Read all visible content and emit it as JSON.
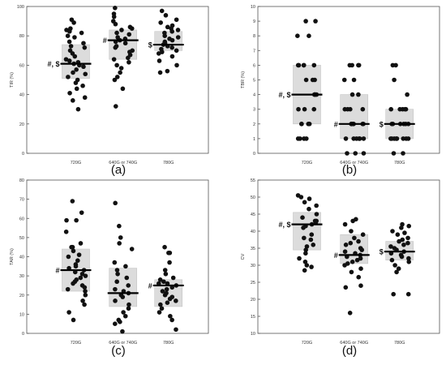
{
  "chart_data": [
    {
      "type": "scatter",
      "panel_label": "(a)",
      "ylabel": "TIR (%)",
      "ylim": [
        0,
        100
      ],
      "yticks": [
        0,
        20,
        40,
        60,
        80,
        100
      ],
      "categories": [
        "720G",
        "640G or 740G",
        "780G"
      ],
      "annotations": [
        "#, $",
        "#",
        "$"
      ],
      "box": [
        {
          "q1": 51,
          "median": 61,
          "q3": 74
        },
        {
          "q1": 64,
          "median": 77,
          "q3": 84
        },
        {
          "q1": 70,
          "median": 74,
          "q3": 83
        }
      ],
      "points": [
        [
          91,
          89,
          85,
          84,
          83,
          82,
          80,
          79,
          76,
          75,
          73,
          72,
          70,
          68,
          66,
          64,
          63,
          62,
          61,
          60,
          59,
          57,
          55,
          54,
          52,
          50,
          48,
          46,
          44,
          41,
          38,
          36,
          30
        ],
        [
          99,
          95,
          93,
          90,
          88,
          86,
          85,
          84,
          82,
          81,
          79,
          78,
          77,
          76,
          75,
          73,
          72,
          70,
          69,
          67,
          65,
          64,
          62,
          60,
          58,
          55,
          52,
          50,
          44,
          32
        ],
        [
          97,
          94,
          91,
          89,
          87,
          86,
          85,
          84,
          83,
          82,
          80,
          79,
          78,
          77,
          76,
          75,
          74,
          73,
          72,
          71,
          70,
          69,
          68,
          66,
          63,
          60,
          56,
          55
        ]
      ]
    },
    {
      "type": "scatter",
      "panel_label": "(b)",
      "ylabel": "TBR (%)",
      "ylim": [
        0,
        10
      ],
      "yticks": [
        0,
        1,
        2,
        3,
        4,
        5,
        6,
        7,
        8,
        9,
        10
      ],
      "categories": [
        "720G",
        "640G or 740G",
        "780G"
      ],
      "annotations": [
        "#, $",
        "#",
        "$"
      ],
      "box": [
        {
          "q1": 2,
          "median": 4,
          "q3": 6
        },
        {
          "q1": 1,
          "median": 2,
          "q3": 4
        },
        {
          "q1": 1,
          "median": 2,
          "q3": 3
        }
      ],
      "points": [
        [
          9,
          9,
          8,
          8,
          6,
          6,
          6,
          6,
          6,
          5,
          5,
          5,
          4,
          4,
          4,
          4,
          3,
          3,
          3,
          2,
          2,
          2,
          2,
          1,
          1,
          1,
          1
        ],
        [
          6,
          6,
          6,
          6,
          5,
          5,
          4,
          4,
          3,
          3,
          3,
          3,
          2,
          2,
          2,
          2,
          2,
          2,
          2,
          1,
          1,
          1,
          1,
          1,
          1,
          0,
          0,
          0
        ],
        [
          6,
          6,
          5,
          4,
          3,
          3,
          3,
          3,
          3,
          2,
          2,
          2,
          2,
          2,
          2,
          1,
          1,
          1,
          1,
          1,
          1,
          1,
          1,
          0,
          0
        ]
      ]
    },
    {
      "type": "scatter",
      "panel_label": "(c)",
      "ylabel": "TAR (%)",
      "ylim": [
        0,
        80
      ],
      "yticks": [
        0,
        10,
        20,
        30,
        40,
        50,
        60,
        70,
        80
      ],
      "categories": [
        "720G",
        "640G or 740G",
        "780G"
      ],
      "annotations": [
        "#",
        "",
        "#"
      ],
      "box": [
        {
          "q1": 22,
          "median": 33,
          "q3": 44
        },
        {
          "q1": 14,
          "median": 21,
          "q3": 34
        },
        {
          "q1": 14,
          "median": 25,
          "q3": 28
        }
      ],
      "points": [
        [
          69,
          63,
          59,
          59,
          53,
          47,
          45,
          45,
          43,
          41,
          40,
          38,
          36,
          35,
          34,
          33,
          32,
          31,
          30,
          29,
          28,
          27,
          26,
          25,
          24,
          23,
          22,
          20,
          17,
          15,
          11,
          7
        ],
        [
          68,
          56,
          50,
          47,
          44,
          37,
          35,
          33,
          31,
          29,
          27,
          25,
          23,
          22,
          21,
          20,
          19,
          17,
          15,
          13,
          11,
          9,
          7,
          6,
          5,
          1
        ],
        [
          45,
          42,
          42,
          37,
          33,
          31,
          29,
          28,
          27,
          26,
          26,
          25,
          24,
          23,
          22,
          21,
          20,
          19,
          18,
          17,
          16,
          15,
          13,
          11,
          9,
          7,
          2
        ]
      ]
    },
    {
      "type": "scatter",
      "panel_label": "(d)",
      "ylabel": "CV",
      "ylim": [
        10,
        55
      ],
      "yticks": [
        10,
        15,
        20,
        25,
        30,
        35,
        40,
        45,
        50,
        55
      ],
      "categories": [
        "720G",
        "640G or 740G",
        "780G"
      ],
      "annotations": [
        "#, $",
        "#",
        "$"
      ],
      "box": [
        {
          "q1": 34.5,
          "median": 42,
          "q3": 45.5
        },
        {
          "q1": 30.5,
          "median": 33,
          "q3": 39
        },
        {
          "q1": 31.5,
          "median": 34,
          "q3": 37
        }
      ],
      "points": [
        [
          50.5,
          50,
          49.5,
          48.5,
          47.5,
          46.5,
          45,
          44,
          43,
          43,
          42.5,
          42,
          41.5,
          41,
          39,
          38,
          37.5,
          36,
          35.5,
          34.5,
          33.5,
          32,
          31,
          30,
          29.5,
          28.5
        ],
        [
          43.5,
          43,
          42,
          40,
          39,
          38,
          37,
          36.5,
          36,
          35,
          34.5,
          34,
          33.5,
          33,
          32.5,
          32,
          31.5,
          31,
          30.5,
          30,
          29,
          28,
          26.5,
          24,
          23.5,
          16
        ],
        [
          42,
          41.5,
          41,
          40,
          39.5,
          39,
          38,
          37.5,
          37,
          36.5,
          36,
          35.5,
          35,
          34.5,
          34,
          33.5,
          33,
          32.5,
          32,
          31.5,
          31,
          30,
          29,
          28,
          21.5,
          21.5
        ]
      ]
    }
  ]
}
